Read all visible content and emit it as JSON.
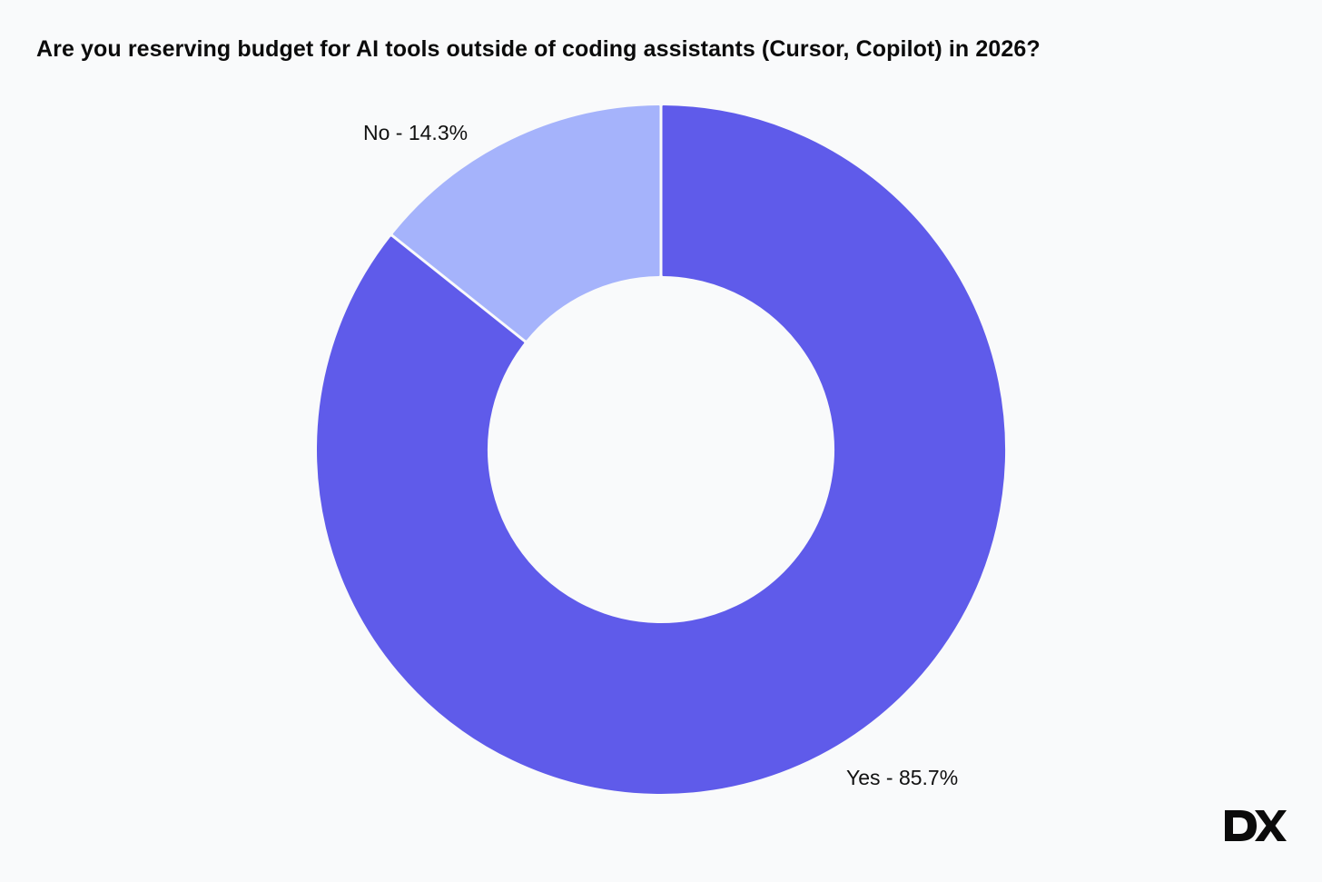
{
  "title": "Are you reserving budget for AI tools outside of coding assistants (Cursor, Copilot) in 2026?",
  "chart_data": {
    "type": "pie",
    "variant": "donut",
    "title": "Are you reserving budget for AI tools outside of coding assistants (Cursor, Copilot) in 2026?",
    "slices": [
      {
        "name": "Yes",
        "value": 85.7,
        "label": "Yes - 85.7%",
        "color": "#5f5bea"
      },
      {
        "name": "No",
        "value": 14.3,
        "label": "No - 14.3%",
        "color": "#a5b3fb"
      }
    ],
    "legend": "none"
  },
  "brand": {
    "text": "DX",
    "color": "#0b0b0b"
  }
}
